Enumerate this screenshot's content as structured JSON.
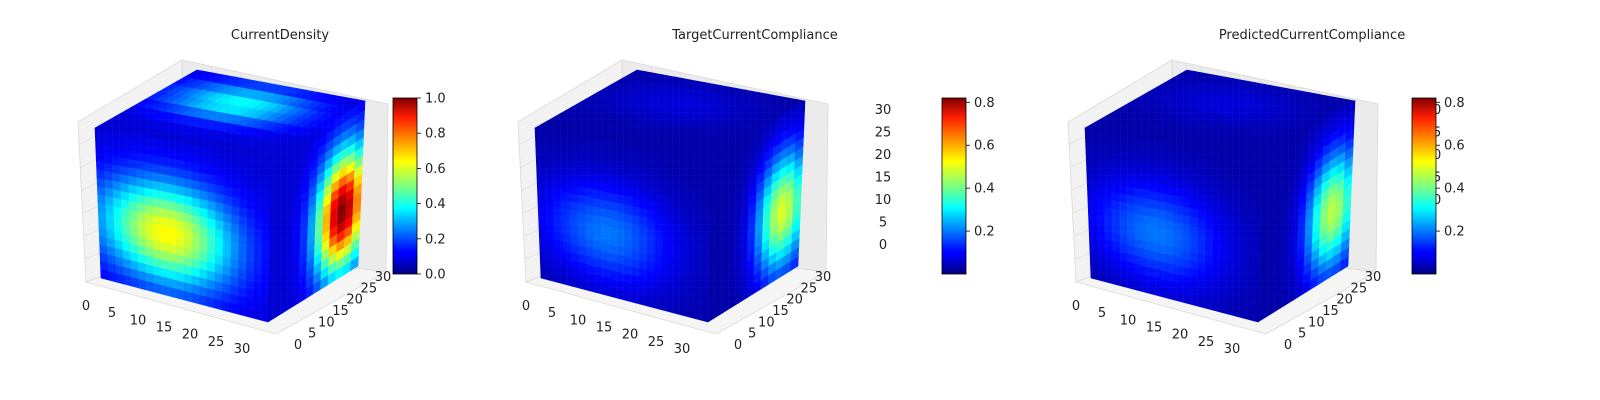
{
  "chart_data": [
    {
      "type": "voxel-3d",
      "title": "CurrentDensity",
      "colormap": "jet",
      "x_ticks": [
        "0",
        "5",
        "10",
        "15",
        "20",
        "25",
        "30"
      ],
      "y_ticks": [
        "0",
        "5",
        "10",
        "15",
        "20",
        "25",
        "30"
      ],
      "z_ticks": [],
      "colorbar": {
        "min": 0.0,
        "max": 1.0,
        "ticks": [
          "0.0",
          "0.2",
          "0.4",
          "0.6",
          "0.8",
          "1.0"
        ]
      },
      "intensity": {
        "base": 0.08,
        "front_max": 0.55,
        "top_max": 0.3,
        "side_max": 0.92
      }
    },
    {
      "type": "voxel-3d",
      "title": "TargetCurrentCompliance",
      "colormap": "jet",
      "x_ticks": [
        "0",
        "5",
        "10",
        "15",
        "20",
        "25",
        "30"
      ],
      "y_ticks": [
        "0",
        "5",
        "10",
        "15",
        "20",
        "25",
        "30"
      ],
      "z_ticks": [
        "0",
        "5",
        "10",
        "15",
        "20",
        "25",
        "30"
      ],
      "colorbar": {
        "min": 0.0,
        "max": 0.82,
        "ticks": [
          "0.2",
          "0.4",
          "0.6",
          "0.8"
        ]
      },
      "intensity": {
        "base": 0.04,
        "front_max": 0.2,
        "top_max": 0.05,
        "side_max": 0.55
      }
    },
    {
      "type": "voxel-3d",
      "title": "PredictedCurrentCompliance",
      "colormap": "jet",
      "x_ticks": [
        "0",
        "5",
        "10",
        "15",
        "20",
        "25",
        "30"
      ],
      "y_ticks": [
        "0",
        "5",
        "10",
        "15",
        "20",
        "25",
        "30"
      ],
      "z_ticks": [
        "0",
        "5",
        "10",
        "15",
        "20",
        "25",
        "30"
      ],
      "colorbar": {
        "min": 0.0,
        "max": 0.82,
        "ticks": [
          "0.2",
          "0.4",
          "0.6",
          "0.8"
        ]
      },
      "intensity": {
        "base": 0.04,
        "front_max": 0.2,
        "top_max": 0.05,
        "side_max": 0.52
      }
    }
  ]
}
